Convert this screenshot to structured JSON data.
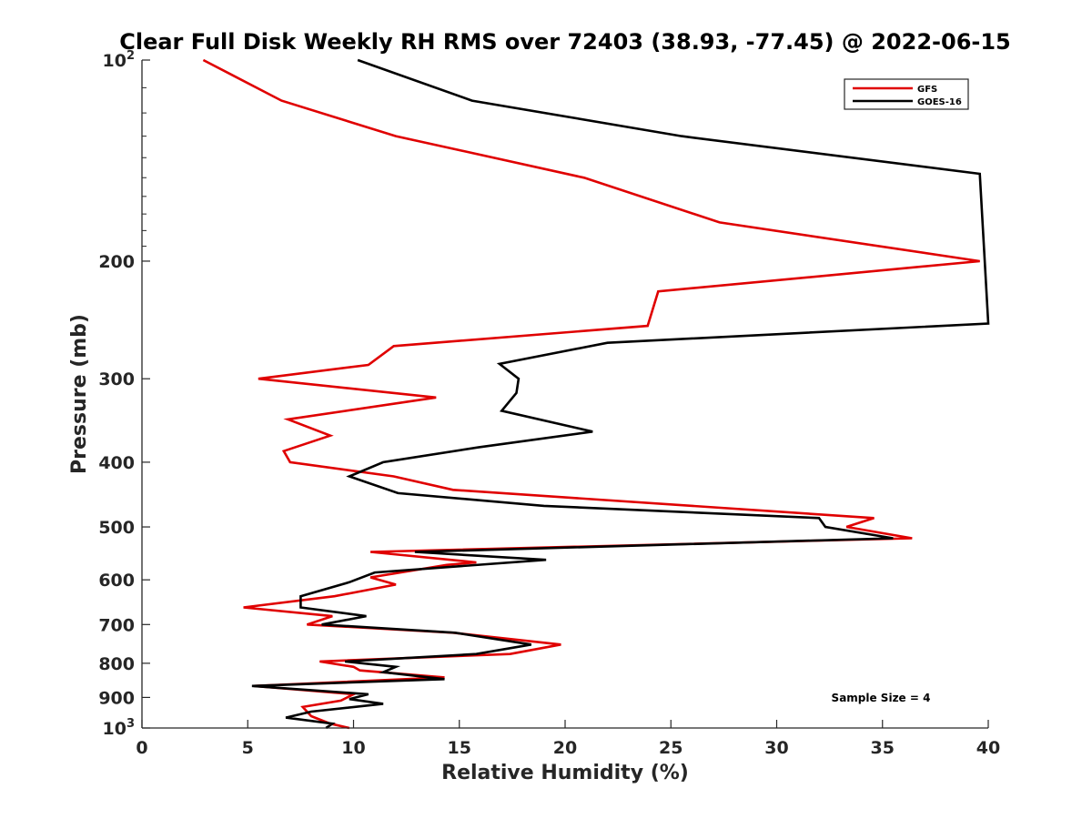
{
  "chart_data": {
    "type": "line",
    "title": "Clear Full Disk Weekly RH RMS over 72403 (38.93, -77.45) @ 2022-06-15",
    "xlabel": "Relative Humidity (%)",
    "ylabel": "Pressure (mb)",
    "xlim": [
      0,
      40
    ],
    "ylim": [
      1000,
      100
    ],
    "y_scale": "log",
    "x_ticks": [
      "0",
      "5",
      "10",
      "15",
      "20",
      "25",
      "30",
      "35",
      "40"
    ],
    "y_ticks": [
      {
        "value": 100,
        "base": "10",
        "exp": "2"
      },
      {
        "value": 200,
        "label": "200"
      },
      {
        "value": 300,
        "label": "300"
      },
      {
        "value": 400,
        "label": "400"
      },
      {
        "value": 500,
        "label": "500"
      },
      {
        "value": 600,
        "label": "600"
      },
      {
        "value": 700,
        "label": "700"
      },
      {
        "value": 800,
        "label": "800"
      },
      {
        "value": 900,
        "label": "900"
      },
      {
        "value": 1000,
        "base": "10",
        "exp": "3"
      }
    ],
    "grid": false,
    "legend_position": "top-right",
    "annotation": "Sample Size = 4",
    "series": [
      {
        "name": "GFS",
        "color": "#e00000",
        "points": [
          [
            2.9,
            100
          ],
          [
            6.6,
            115
          ],
          [
            12.0,
            130
          ],
          [
            20.9,
            150
          ],
          [
            27.3,
            175
          ],
          [
            39.6,
            200
          ],
          [
            24.4,
            222
          ],
          [
            23.9,
            250
          ],
          [
            11.9,
            268
          ],
          [
            10.7,
            286
          ],
          [
            5.5,
            300
          ],
          [
            13.9,
            320
          ],
          [
            6.9,
            345
          ],
          [
            8.9,
            365
          ],
          [
            6.7,
            385
          ],
          [
            7.0,
            400
          ],
          [
            11.9,
            420
          ],
          [
            14.7,
            440
          ],
          [
            34.6,
            485
          ],
          [
            33.3,
            500
          ],
          [
            36.4,
            520
          ],
          [
            10.8,
            545
          ],
          [
            15.8,
            565
          ],
          [
            14.4,
            570
          ],
          [
            10.8,
            595
          ],
          [
            12.0,
            610
          ],
          [
            9.1,
            635
          ],
          [
            4.8,
            660
          ],
          [
            9.0,
            680
          ],
          [
            7.8,
            700
          ],
          [
            14.7,
            720
          ],
          [
            19.8,
            750
          ],
          [
            17.4,
            775
          ],
          [
            8.4,
            795
          ],
          [
            10.0,
            810
          ],
          [
            10.3,
            820
          ],
          [
            14.3,
            840
          ],
          [
            5.3,
            865
          ],
          [
            10.0,
            890
          ],
          [
            9.4,
            910
          ],
          [
            7.6,
            930
          ],
          [
            8.0,
            960
          ],
          [
            8.9,
            985
          ],
          [
            9.8,
            1000
          ]
        ]
      },
      {
        "name": "GOES-16",
        "color": "#000000",
        "points": [
          [
            10.2,
            100
          ],
          [
            15.6,
            115
          ],
          [
            25.5,
            130
          ],
          [
            39.6,
            148
          ],
          [
            40.0,
            248
          ],
          [
            22.0,
            265
          ],
          [
            16.9,
            285
          ],
          [
            17.8,
            300
          ],
          [
            17.7,
            315
          ],
          [
            17.0,
            335
          ],
          [
            21.3,
            360
          ],
          [
            15.9,
            380
          ],
          [
            11.4,
            400
          ],
          [
            9.8,
            420
          ],
          [
            12.1,
            445
          ],
          [
            19.0,
            465
          ],
          [
            32.0,
            485
          ],
          [
            32.3,
            500
          ],
          [
            35.5,
            520
          ],
          [
            12.9,
            545
          ],
          [
            19.1,
            560
          ],
          [
            11.0,
            585
          ],
          [
            9.8,
            605
          ],
          [
            7.5,
            635
          ],
          [
            7.5,
            660
          ],
          [
            10.6,
            680
          ],
          [
            8.5,
            700
          ],
          [
            14.8,
            720
          ],
          [
            18.4,
            750
          ],
          [
            15.8,
            775
          ],
          [
            9.6,
            795
          ],
          [
            12.0,
            810
          ],
          [
            11.4,
            825
          ],
          [
            14.3,
            845
          ],
          [
            5.2,
            865
          ],
          [
            10.7,
            890
          ],
          [
            9.8,
            905
          ],
          [
            11.4,
            920
          ],
          [
            8.0,
            945
          ],
          [
            6.8,
            965
          ],
          [
            9.0,
            985
          ],
          [
            8.7,
            1000
          ]
        ]
      }
    ]
  }
}
